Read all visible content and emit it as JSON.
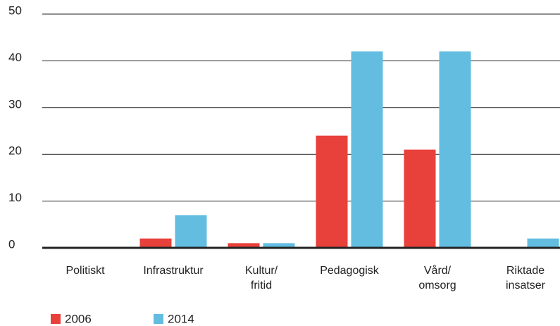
{
  "chart_data": {
    "type": "bar",
    "categories": [
      "Politiskt",
      "Infrastruktur",
      "Kultur/\nfritid",
      "Pedagogisk",
      "Vård/\nomsorg",
      "Riktade\ninsatser"
    ],
    "series": [
      {
        "name": "2006",
        "color": "#e8403a",
        "values": [
          0,
          2,
          1,
          24,
          21,
          0
        ]
      },
      {
        "name": "2014",
        "color": "#62bde1",
        "values": [
          0,
          7,
          1,
          42,
          42,
          2
        ]
      }
    ],
    "ylim": [
      0,
      50
    ],
    "yticks": [
      0,
      10,
      20,
      30,
      40,
      50
    ],
    "grid": true,
    "legend": "bottom-left"
  }
}
